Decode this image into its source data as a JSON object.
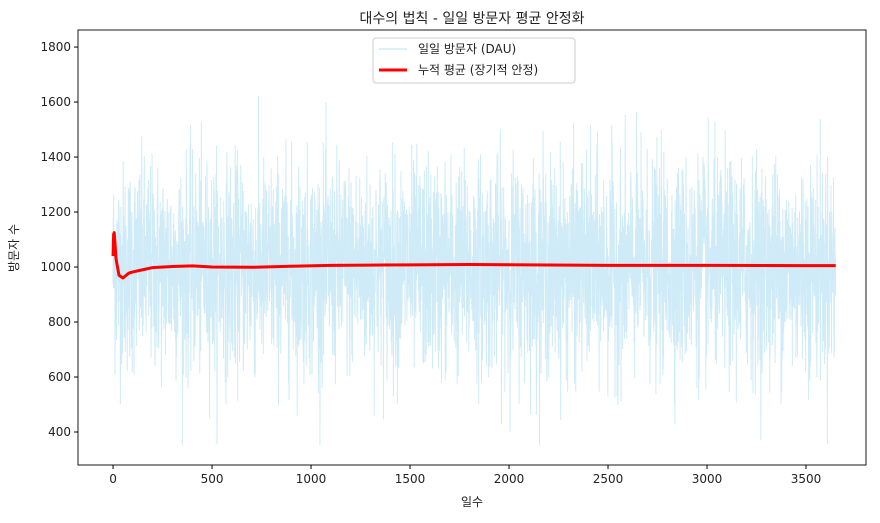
{
  "chart_data": {
    "type": "line",
    "title": "대수의 법칙 - 일일 방문자 평균 안정화",
    "xlabel": "일수",
    "ylabel": "방문자 수",
    "xlim": [
      -177,
      3803
    ],
    "ylim": [
      280,
      1862
    ],
    "xticks": [
      0,
      500,
      1000,
      1500,
      2000,
      2500,
      3000,
      3500
    ],
    "yticks": [
      400,
      600,
      800,
      1000,
      1200,
      1400,
      1600,
      1800
    ],
    "grid": false,
    "legend_position": "top-center",
    "series": [
      {
        "name": "일일 방문자 (DAU)",
        "color": "#87ceeb",
        "opacity": 0.4,
        "generated": {
          "n_days": 3650,
          "mean": 1000,
          "std": 190,
          "min": 352,
          "max": 1772
        }
      },
      {
        "name": "누적 평균 (장기적 안정)",
        "color": "#ff0000",
        "x": [
          0,
          3,
          6,
          15,
          30,
          50,
          80,
          100,
          150,
          200,
          300,
          400,
          500,
          700,
          900,
          1100,
          1300,
          1500,
          1800,
          2100,
          2500,
          3000,
          3500,
          3650
        ],
        "y": [
          1040,
          1120,
          1125,
          1030,
          970,
          960,
          978,
          982,
          990,
          998,
          1002,
          1004,
          1000,
          999,
          1003,
          1006,
          1007,
          1008,
          1009,
          1008,
          1006,
          1006,
          1005,
          1005
        ]
      }
    ]
  }
}
